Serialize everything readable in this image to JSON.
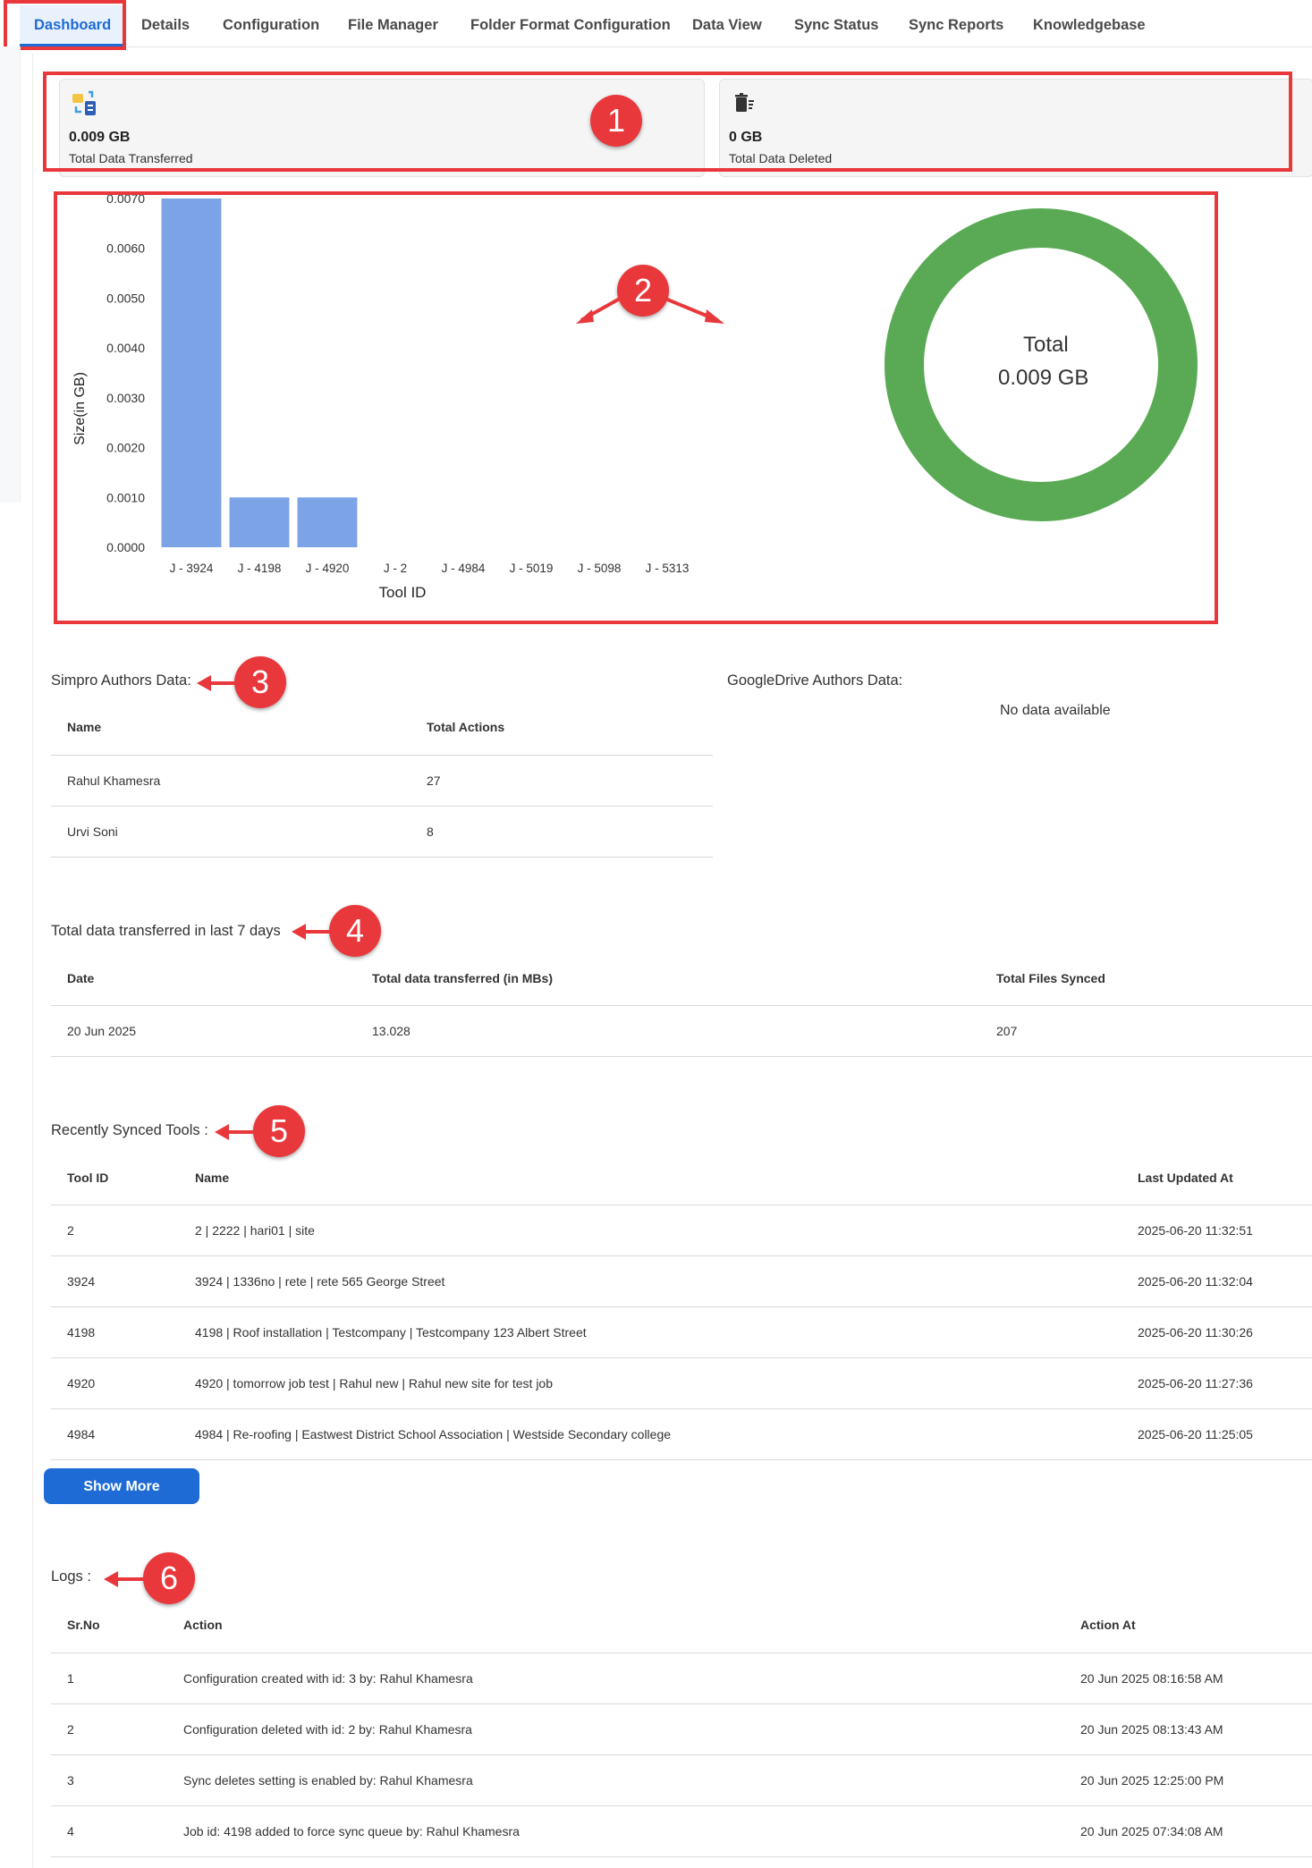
{
  "tabs": [
    {
      "label": "Dashboard",
      "active": true
    },
    {
      "label": "Details"
    },
    {
      "label": "Configuration"
    },
    {
      "label": "File Manager"
    },
    {
      "label": "Folder Format Configuration"
    },
    {
      "label": "Data View"
    },
    {
      "label": "Sync Status"
    },
    {
      "label": "Sync Reports"
    },
    {
      "label": "Knowledgebase"
    }
  ],
  "cards": {
    "transferred": {
      "value": "0.009 GB",
      "label": "Total Data Transferred",
      "icon": "data-transfer-icon"
    },
    "deleted": {
      "value": "0 GB",
      "label": "Total Data Deleted",
      "icon": "trash-icon"
    }
  },
  "badges": [
    "1",
    "2",
    "3",
    "4",
    "5",
    "6"
  ],
  "chart_data": [
    {
      "type": "bar",
      "categories": [
        "J - 3924",
        "J - 4198",
        "J - 4920",
        "J - 2",
        "J - 4984",
        "J - 5019",
        "J - 5098",
        "J - 5313"
      ],
      "values": [
        0.007,
        0.001,
        0.001,
        0,
        0,
        0,
        0,
        0
      ],
      "xlabel": "Tool ID",
      "ylabel": "Size(in GB)",
      "yticks": [
        "0.0000",
        "0.0010",
        "0.0020",
        "0.0030",
        "0.0040",
        "0.0050",
        "0.0060",
        "0.0070"
      ],
      "ylim": [
        0,
        0.007
      ],
      "color": "#7ba3e6",
      "grid": false
    },
    {
      "type": "pie",
      "labels": [
        "Total"
      ],
      "values": [
        0.009
      ],
      "center_label": "Total",
      "center_value": "0.009 GB",
      "color": "#5aaa55"
    }
  ],
  "authors": {
    "simpro_title": "Simpro Authors Data:",
    "columns": [
      "Name",
      "Total Actions"
    ],
    "rows": [
      [
        "Rahul Khamesra",
        "27"
      ],
      [
        "Urvi Soni",
        "8"
      ]
    ],
    "google_title": "GoogleDrive Authors Data:",
    "google_empty": "No data available"
  },
  "last7": {
    "title": "Total data transferred in last 7 days",
    "columns": [
      "Date",
      "Total data transferred (in MBs)",
      "Total Files Synced"
    ],
    "rows": [
      [
        "20 Jun 2025",
        "13.028",
        "207"
      ]
    ]
  },
  "recent": {
    "title": "Recently Synced Tools :",
    "columns": [
      "Tool ID",
      "Name",
      "Last Updated At"
    ],
    "rows": [
      [
        "2",
        "2 | 2222 | hari01 | site",
        "2025-06-20 11:32:51"
      ],
      [
        "3924",
        "3924 | 1336no | rete | rete 565 George Street",
        "2025-06-20 11:32:04"
      ],
      [
        "4198",
        "4198 | Roof installation | Testcompany | Testcompany 123 Albert Street",
        "2025-06-20 11:30:26"
      ],
      [
        "4920",
        "4920 | tomorrow job test | Rahul new | Rahul new site for test job",
        "2025-06-20 11:27:36"
      ],
      [
        "4984",
        "4984 | Re-roofing | Eastwest District School Association | Westside Secondary college",
        "2025-06-20 11:25:05"
      ]
    ],
    "show_more": "Show More"
  },
  "logs": {
    "title": "Logs :",
    "columns": [
      "Sr.No",
      "Action",
      "Action At"
    ],
    "rows": [
      [
        "1",
        "Configuration created with id: 3 by: Rahul Khamesra",
        "20 Jun 2025 08:16:58 AM"
      ],
      [
        "2",
        "Configuration deleted with id: 2 by: Rahul Khamesra",
        "20 Jun 2025 08:13:43 AM"
      ],
      [
        "3",
        "Sync deletes setting is enabled by: Rahul Khamesra",
        "20 Jun 2025 12:25:00 PM"
      ],
      [
        "4",
        "Job id: 4198 added to force sync queue by: Rahul Khamesra",
        "20 Jun 2025 07:34:08 AM"
      ]
    ]
  }
}
